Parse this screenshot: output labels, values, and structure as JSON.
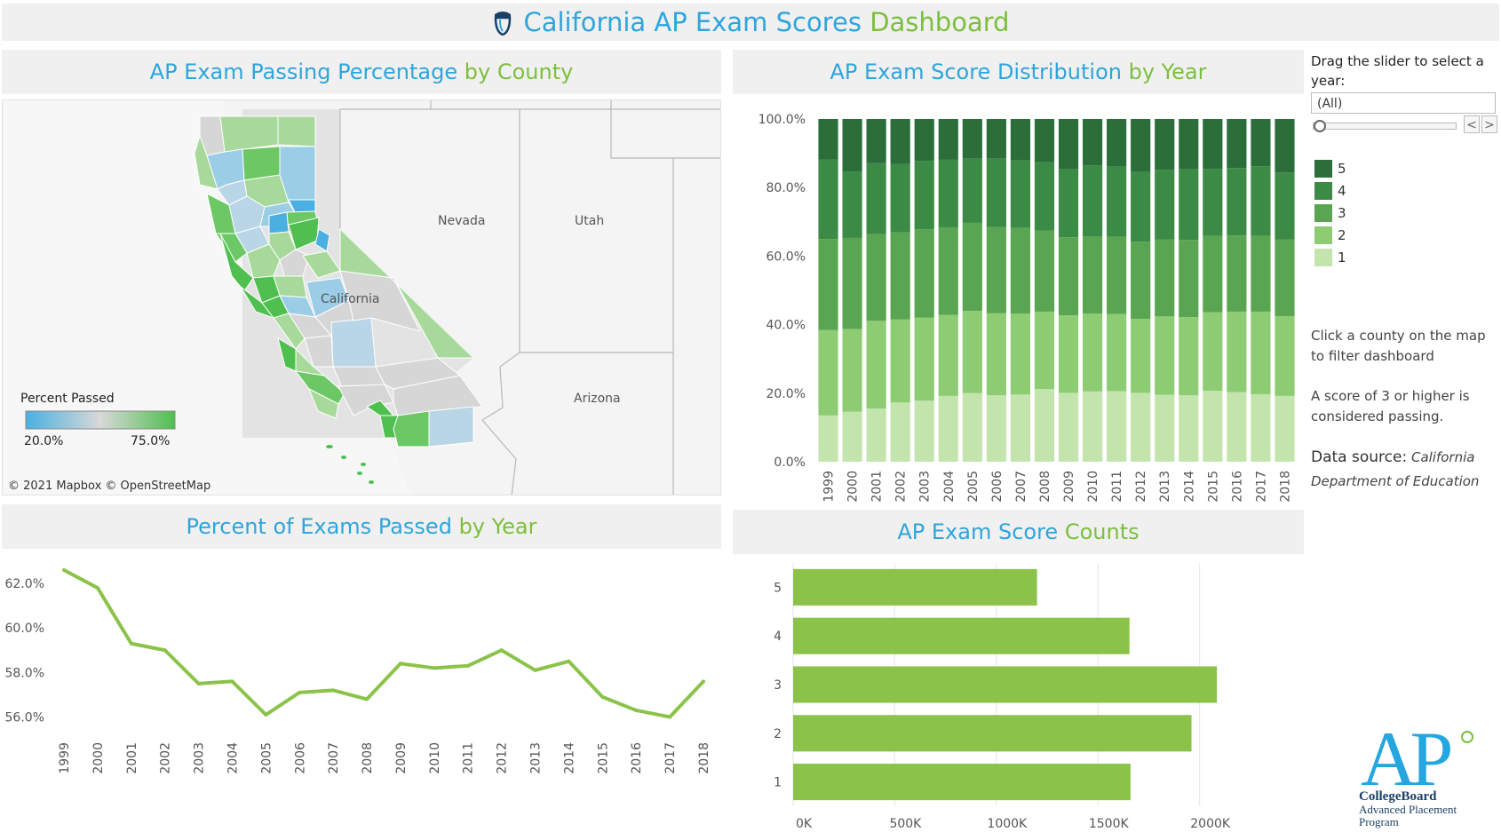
{
  "header": {
    "title_part1": "California AP Exam Scores",
    "title_part2": "Dashboard"
  },
  "map_panel": {
    "title_part1": "AP Exam Passing Percentage",
    "title_part2": "by County",
    "state_labels": [
      "Nevada",
      "Utah",
      "Arizona",
      "California"
    ],
    "legend_title": "Percent Passed",
    "legend_min": "20.0%",
    "legend_max": "75.0%",
    "attribution": "© 2021 Mapbox © OpenStreetMap",
    "colors": {
      "low": "#4ab0e2",
      "mid": "#d4d4d4",
      "high": "#4fbf4f"
    }
  },
  "line_panel": {
    "title_part1": "Percent of Exams Passed",
    "title_part2": "by Year"
  },
  "dist_panel": {
    "title_part1": "AP Exam Score Distribution",
    "title_part2": "by Year"
  },
  "counts_panel": {
    "title_part1": "AP Exam Score",
    "title_part2": "Counts"
  },
  "controls": {
    "slider_label": "Drag the slider to select a year:",
    "slider_value": "(All)",
    "prev_glyph": "<",
    "next_glyph": ">"
  },
  "score_legend": [
    {
      "label": "5",
      "color": "#2b6e3a"
    },
    {
      "label": "4",
      "color": "#3b8a45"
    },
    {
      "label": "3",
      "color": "#5aa552"
    },
    {
      "label": "2",
      "color": "#8ecc74"
    },
    {
      "label": "1",
      "color": "#c3e5ad"
    }
  ],
  "notes": {
    "click_hint": "Click a county on the map to filter dashboard",
    "passing_hint": "A score of 3 or higher is considered passing.",
    "source_label": "Data source:",
    "source_text": "California Department of Education"
  },
  "logo": {
    "mark": "AP",
    "line1": "CollegeBoard",
    "line2": "Advanced Placement",
    "line3": "Program"
  },
  "chart_data": [
    {
      "type": "line",
      "title": "Percent of Exams Passed by Year",
      "x": [
        "1999",
        "2000",
        "2001",
        "2002",
        "2003",
        "2004",
        "2005",
        "2006",
        "2007",
        "2008",
        "2009",
        "2010",
        "2011",
        "2012",
        "2013",
        "2014",
        "2015",
        "2016",
        "2017",
        "2018"
      ],
      "y": [
        62.6,
        61.8,
        59.3,
        59.0,
        57.5,
        57.6,
        56.1,
        57.1,
        57.2,
        56.8,
        58.4,
        58.2,
        58.3,
        59.0,
        58.1,
        58.5,
        56.9,
        56.3,
        56.0,
        57.6
      ],
      "yticks": [
        "56.0%",
        "58.0%",
        "60.0%",
        "62.0%"
      ],
      "ylim": [
        55.5,
        63.0
      ],
      "color": "#8bc34a",
      "grid": false
    },
    {
      "type": "bar",
      "stacked": true,
      "title": "AP Exam Score Distribution by Year",
      "categories": [
        "1999",
        "2000",
        "2001",
        "2002",
        "2003",
        "2004",
        "2005",
        "2006",
        "2007",
        "2008",
        "2009",
        "2010",
        "2011",
        "2012",
        "2013",
        "2014",
        "2015",
        "2016",
        "2017",
        "2018"
      ],
      "yticks": [
        "0.0%",
        "20.0%",
        "40.0%",
        "60.0%",
        "80.0%",
        "100.0%"
      ],
      "ylim": [
        0,
        100
      ],
      "series": [
        {
          "name": "1",
          "color": "#c3e5ad",
          "values": [
            13.5,
            14.6,
            15.5,
            17.3,
            17.8,
            19.2,
            20.0,
            19.4,
            19.6,
            21.2,
            20.1,
            20.5,
            20.6,
            20.1,
            19.5,
            19.4,
            20.7,
            20.3,
            19.7,
            19.2
          ]
        },
        {
          "name": "2",
          "color": "#8ecc74",
          "values": [
            24.9,
            24.1,
            25.6,
            24.2,
            24.3,
            23.6,
            24.0,
            23.9,
            23.6,
            22.6,
            22.6,
            22.7,
            22.5,
            21.6,
            22.9,
            22.8,
            22.9,
            23.5,
            24.1,
            23.3
          ]
        },
        {
          "name": "3",
          "color": "#5aa552",
          "values": [
            26.6,
            26.6,
            25.3,
            25.4,
            25.7,
            25.6,
            25.7,
            25.2,
            25.0,
            23.6,
            22.8,
            22.5,
            22.5,
            22.5,
            22.5,
            22.5,
            22.3,
            22.2,
            22.1,
            22.4
          ]
        },
        {
          "name": "4",
          "color": "#3b8a45",
          "values": [
            23.2,
            19.4,
            20.7,
            20.0,
            20.0,
            19.7,
            18.7,
            19.9,
            19.7,
            20.0,
            19.8,
            20.8,
            20.5,
            20.3,
            20.3,
            20.6,
            19.5,
            19.7,
            20.3,
            19.5
          ]
        },
        {
          "name": "5",
          "color": "#2b6e3a",
          "values": [
            11.8,
            15.3,
            12.9,
            13.1,
            12.2,
            11.9,
            11.6,
            11.6,
            12.1,
            12.6,
            14.7,
            13.5,
            13.9,
            15.5,
            14.8,
            14.7,
            14.6,
            14.3,
            13.8,
            15.6
          ]
        }
      ]
    },
    {
      "type": "bar",
      "orientation": "horizontal",
      "title": "AP Exam Score Counts",
      "categories": [
        "5",
        "4",
        "3",
        "2",
        "1"
      ],
      "values": [
        1200000,
        1655000,
        2085000,
        1960000,
        1660000
      ],
      "xticks": [
        "0K",
        "500K",
        "1000K",
        "1500K",
        "2000K"
      ],
      "xlim": [
        0,
        2150000
      ],
      "color": "#8bc34a"
    }
  ]
}
